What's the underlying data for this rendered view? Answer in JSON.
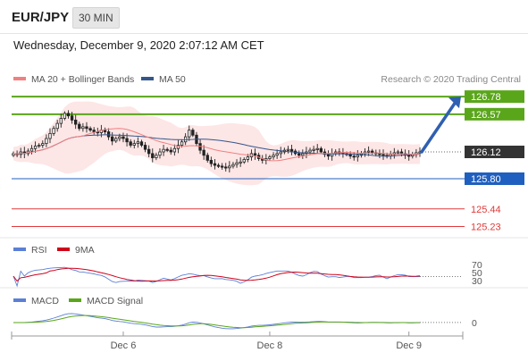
{
  "header": {
    "symbol": "EUR/JPY",
    "timeframe": "30 MIN",
    "datetime": "Wednesday, December 9, 2020 2:07:12 AM CET"
  },
  "legend": {
    "ma20": "MA 20 + Bollinger Bands",
    "ma50": "MA 50",
    "credit": "Research © 2020 Trading Central",
    "colors": {
      "ma20": "#f08080",
      "ma50": "#34568b",
      "bands": "#fde2e2"
    }
  },
  "levels": [
    {
      "label": "126.78",
      "value": 126.78,
      "color": "#5aa61a",
      "kind": "resistance",
      "tag": "filled"
    },
    {
      "label": "126.57",
      "value": 126.57,
      "color": "#5aa61a",
      "kind": "resistance",
      "tag": "filled"
    },
    {
      "label": "126.12",
      "value": 126.12,
      "color": "#333333",
      "kind": "last",
      "tag": "filled"
    },
    {
      "label": "125.80",
      "value": 125.8,
      "color": "#1f5fbf",
      "kind": "pivot",
      "tag": "filled"
    },
    {
      "label": "125.44",
      "value": 125.44,
      "color": "#e03a3a",
      "kind": "support",
      "tag": "text"
    },
    {
      "label": "125.23",
      "value": 125.23,
      "color": "#e03a3a",
      "kind": "support",
      "tag": "text"
    }
  ],
  "rsi": {
    "legend_rsi": "RSI",
    "legend_ma": "9MA",
    "colors": {
      "rsi": "#5b7fd6",
      "ma": "#d0021b"
    },
    "levels": [
      "70",
      "50",
      "30"
    ]
  },
  "macd": {
    "legend_macd": "MACD",
    "legend_signal": "MACD Signal",
    "colors": {
      "macd": "#5b7fd6",
      "signal": "#5aa61a"
    },
    "zero_label": "0"
  },
  "chart_data": {
    "type": "candlestick",
    "price_range": [
      125.1,
      126.9
    ],
    "x_tick_labels": [
      "Dec 6",
      "Dec 8",
      "Dec 9"
    ],
    "x_tick_positions_bar": [
      30,
      70,
      108
    ],
    "close": [
      126.1,
      126.09,
      126.12,
      126.1,
      126.13,
      126.16,
      126.19,
      126.2,
      126.22,
      126.28,
      126.34,
      126.4,
      126.46,
      126.52,
      126.58,
      126.55,
      126.5,
      126.45,
      126.4,
      126.42,
      126.4,
      126.38,
      126.36,
      126.35,
      126.38,
      126.36,
      126.3,
      126.25,
      126.28,
      126.3,
      126.28,
      126.24,
      126.2,
      126.22,
      126.24,
      126.2,
      126.15,
      126.1,
      126.05,
      126.08,
      126.12,
      126.15,
      126.14,
      126.12,
      126.16,
      126.2,
      126.24,
      126.3,
      126.38,
      126.32,
      126.22,
      126.14,
      126.08,
      126.02,
      125.98,
      125.96,
      125.95,
      125.94,
      125.93,
      125.95,
      125.97,
      125.99,
      126.0,
      126.03,
      126.06,
      126.1,
      126.08,
      126.04,
      126.02,
      126.04,
      126.06,
      126.08,
      126.1,
      126.12,
      126.14,
      126.15,
      126.13,
      126.1,
      126.08,
      126.1,
      126.12,
      126.14,
      126.15,
      126.16,
      126.12,
      126.09,
      126.07,
      126.1,
      126.12,
      126.11,
      126.1,
      126.09,
      126.07,
      126.06,
      126.08,
      126.1,
      126.12,
      126.13,
      126.11,
      126.1,
      126.09,
      126.08,
      126.07,
      126.09,
      126.11,
      126.12,
      126.1,
      126.08,
      126.07,
      126.09,
      126.11,
      126.12
    ],
    "projection": {
      "from": 126.12,
      "to": 126.78
    }
  }
}
